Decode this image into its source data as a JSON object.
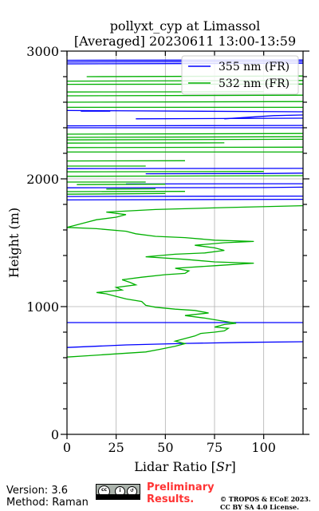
{
  "chart_data": {
    "type": "line",
    "title_line1": "pollyxt_cyp at Limassol",
    "title_line2": "[Averaged] 20230611 13:00-13:59",
    "xlabel_main": "Lidar Ratio [",
    "xlabel_unit": "Sr",
    "xlabel_end": "]",
    "ylabel": "Height (m)",
    "xlim": [
      0,
      120
    ],
    "ylim": [
      0,
      3000
    ],
    "xticks": [
      0,
      25,
      50,
      75,
      100
    ],
    "xtick_labels": [
      "0",
      "25",
      "50",
      "75",
      "100"
    ],
    "yticks": [
      0,
      1000,
      2000,
      3000
    ],
    "ytick_labels": [
      "0",
      "1000",
      "2000",
      "3000"
    ],
    "grid": true,
    "legend_position": "top-right",
    "series": [
      {
        "name": "355 nm (FR)",
        "color": "#0000ff",
        "lines": [
          [
            [
              0,
              680
            ],
            [
              30,
              700
            ],
            [
              60,
              712
            ],
            [
              90,
              720
            ],
            [
              120,
              725
            ]
          ],
          [
            [
              0,
              875
            ],
            [
              120,
              875
            ]
          ],
          [
            [
              0,
              1835
            ],
            [
              120,
              1840
            ]
          ],
          [
            [
              0,
              1862
            ],
            [
              120,
              1865
            ]
          ],
          [
            [
              0,
              1930
            ],
            [
              100,
              1932
            ],
            [
              120,
              1935
            ]
          ],
          [
            [
              30,
              1960
            ],
            [
              120,
              1962
            ]
          ],
          [
            [
              40,
              2040
            ],
            [
              100,
              2042
            ],
            [
              120,
              2045
            ]
          ],
          [
            [
              0,
              2080
            ],
            [
              120,
              2082
            ]
          ],
          [
            [
              0,
              2400
            ],
            [
              120,
              2400
            ]
          ],
          [
            [
              0,
              2415
            ],
            [
              120,
              2418
            ]
          ],
          [
            [
              35,
              2470
            ],
            [
              120,
              2475
            ]
          ],
          [
            [
              80,
              2470
            ],
            [
              105,
              2495
            ],
            [
              120,
              2500
            ]
          ],
          [
            [
              0,
              2535
            ],
            [
              120,
              2525
            ]
          ],
          [
            [
              7,
              2530
            ],
            [
              22,
              2530
            ]
          ],
          [
            [
              0,
              2900
            ],
            [
              120,
              2905
            ]
          ],
          [
            [
              0,
              2915
            ],
            [
              120,
              2918
            ]
          ],
          [
            [
              0,
              2928
            ],
            [
              120,
              2930
            ]
          ]
        ]
      },
      {
        "name": "532 nm (FR)",
        "color": "#00b000",
        "lines": [
          [
            [
              0,
              605
            ],
            [
              10,
              615
            ],
            [
              25,
              630
            ],
            [
              40,
              645
            ],
            [
              47,
              665
            ],
            [
              55,
              690
            ],
            [
              60,
              710
            ],
            [
              55,
              730
            ],
            [
              60,
              750
            ],
            [
              65,
              770
            ],
            [
              68,
              790
            ],
            [
              75,
              800
            ],
            [
              80,
              810
            ],
            [
              82,
              830
            ],
            [
              75,
              840
            ],
            [
              80,
              860
            ],
            [
              86,
              870
            ],
            [
              78,
              890
            ],
            [
              70,
              910
            ],
            [
              65,
              920
            ],
            [
              60,
              930
            ],
            [
              72,
              950
            ],
            [
              65,
              970
            ],
            [
              55,
              980
            ],
            [
              45,
              995
            ],
            [
              40,
              1010
            ],
            [
              38,
              1040
            ],
            [
              30,
              1060
            ],
            [
              25,
              1080
            ],
            [
              20,
              1100
            ],
            [
              15,
              1110
            ],
            [
              28,
              1130
            ],
            [
              25,
              1150
            ],
            [
              35,
              1170
            ],
            [
              32,
              1190
            ],
            [
              28,
              1210
            ],
            [
              38,
              1230
            ],
            [
              50,
              1250
            ],
            [
              60,
              1260
            ],
            [
              62,
              1280
            ],
            [
              55,
              1300
            ],
            [
              75,
              1320
            ],
            [
              85,
              1330
            ],
            [
              95,
              1340
            ],
            [
              75,
              1350
            ],
            [
              60,
              1370
            ],
            [
              40,
              1390
            ],
            [
              55,
              1410
            ],
            [
              70,
              1420
            ],
            [
              80,
              1440
            ],
            [
              75,
              1460
            ],
            [
              65,
              1480
            ],
            [
              80,
              1500
            ],
            [
              95,
              1510
            ],
            [
              75,
              1520
            ],
            [
              60,
              1540
            ],
            [
              45,
              1550
            ],
            [
              35,
              1570
            ],
            [
              30,
              1590
            ],
            [
              15,
              1610
            ],
            [
              0,
              1620
            ],
            [
              5,
              1640
            ],
            [
              10,
              1660
            ],
            [
              15,
              1680
            ],
            [
              25,
              1700
            ],
            [
              30,
              1720
            ],
            [
              20,
              1740
            ],
            [
              45,
              1760
            ],
            [
              80,
              1775
            ],
            [
              120,
              1790
            ]
          ],
          [
            [
              0,
              1880
            ],
            [
              50,
              1885
            ]
          ],
          [
            [
              0,
              1900
            ],
            [
              60,
              1902
            ]
          ],
          [
            [
              20,
              1920
            ],
            [
              45,
              1922
            ]
          ],
          [
            [
              5,
              1955
            ],
            [
              50,
              1958
            ]
          ],
          [
            [
              0,
              1975
            ],
            [
              40,
              1975
            ]
          ],
          [
            [
              0,
              2020
            ],
            [
              120,
              2025
            ]
          ],
          [
            [
              0,
              2055
            ],
            [
              100,
              2058
            ]
          ],
          [
            [
              0,
              2100
            ],
            [
              40,
              2100
            ]
          ],
          [
            [
              0,
              2140
            ],
            [
              60,
              2142
            ]
          ],
          [
            [
              0,
              2210
            ],
            [
              120,
              2210
            ]
          ],
          [
            [
              0,
              2245
            ],
            [
              120,
              2248
            ]
          ],
          [
            [
              0,
              2280
            ],
            [
              80,
              2282
            ]
          ],
          [
            [
              0,
              2305
            ],
            [
              120,
              2310
            ]
          ],
          [
            [
              0,
              2325
            ],
            [
              120,
              2330
            ]
          ],
          [
            [
              0,
              2350
            ],
            [
              120,
              2355
            ]
          ],
          [
            [
              0,
              2560
            ],
            [
              120,
              2560
            ]
          ],
          [
            [
              0,
              2600
            ],
            [
              120,
              2605
            ]
          ],
          [
            [
              0,
              2650
            ],
            [
              120,
              2655
            ]
          ],
          [
            [
              0,
              2680
            ],
            [
              100,
              2682
            ]
          ],
          [
            [
              0,
              2740
            ],
            [
              120,
              2742
            ]
          ],
          [
            [
              0,
              2765
            ],
            [
              120,
              2770
            ]
          ],
          [
            [
              10,
              2800
            ],
            [
              120,
              2805
            ]
          ]
        ]
      }
    ]
  },
  "footer": {
    "version": "Version: 3.6",
    "method": "Method: Raman",
    "preliminary_line1": "Preliminary",
    "preliminary_line2": "Results.",
    "copyright_line1": "© TROPOS & ECoE 2023.",
    "copyright_line2": "CC BY SA 4.0 License."
  }
}
